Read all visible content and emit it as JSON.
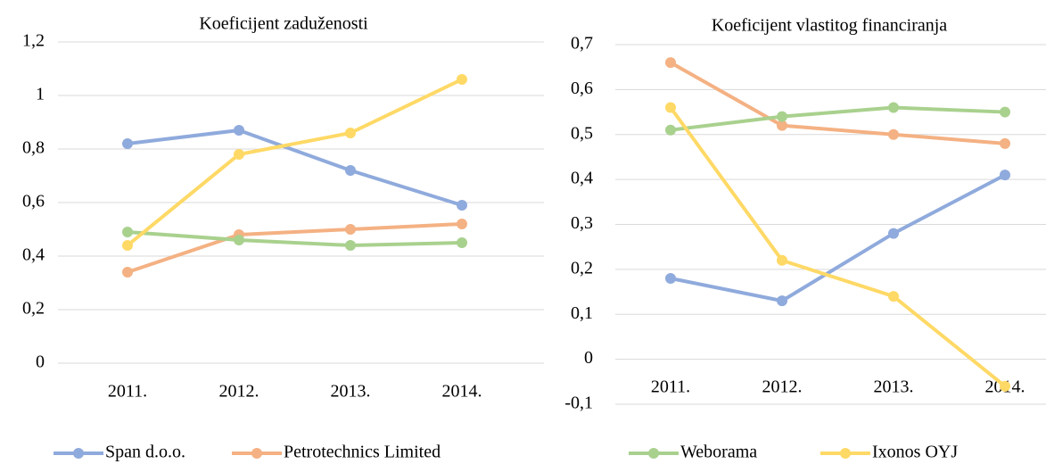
{
  "chart_data": [
    {
      "type": "line",
      "title": "Koeficijent zaduženosti",
      "categories": [
        "2011.",
        "2012.",
        "2013.",
        "2014."
      ],
      "ylim": [
        0,
        1.2
      ],
      "yticks": [
        0,
        {
          "value": 0.2,
          "label": "0,2"
        },
        {
          "value": 0.4,
          "label": "0,4"
        },
        {
          "value": 0.6,
          "label": "0,6"
        },
        {
          "value": 0.8,
          "label": "0,8"
        },
        1,
        {
          "value": 1.2,
          "label": "1,2"
        }
      ],
      "grid": true,
      "legend": "bottom",
      "series": [
        {
          "name": "Span d.o.o.",
          "color": "#8faadc",
          "values": [
            0.82,
            0.87,
            0.72,
            0.59
          ]
        },
        {
          "name": "Petrotechnics Limited",
          "color": "#f4b183",
          "values": [
            0.34,
            0.48,
            0.5,
            0.52
          ]
        },
        {
          "name": "Weborama",
          "color": "#a9d18e",
          "values": [
            0.49,
            0.46,
            0.44,
            0.45
          ]
        },
        {
          "name": "Ixonos OYJ",
          "color": "#ffd966",
          "values": [
            0.44,
            0.78,
            0.86,
            1.06
          ]
        }
      ]
    },
    {
      "type": "line",
      "title": "Koeficijent vlastitog financiranja",
      "categories": [
        "2011.",
        "2012.",
        "2013.",
        "2014."
      ],
      "ylim": [
        -0.1,
        0.7
      ],
      "yticks": [
        {
          "value": -0.1,
          "label": "-0,1"
        },
        0,
        {
          "value": 0.1,
          "label": "0,1"
        },
        {
          "value": 0.2,
          "label": "0,2"
        },
        {
          "value": 0.3,
          "label": "0,3"
        },
        {
          "value": 0.4,
          "label": "0,4"
        },
        {
          "value": 0.5,
          "label": "0,5"
        },
        {
          "value": 0.6,
          "label": "0,6"
        },
        {
          "value": 0.7,
          "label": "0,7"
        }
      ],
      "grid": true,
      "series": [
        {
          "name": "Span d.o.o.",
          "color": "#8faadc",
          "values": [
            0.18,
            0.13,
            0.28,
            0.41
          ]
        },
        {
          "name": "Petrotechnics Limited",
          "color": "#f4b183",
          "values": [
            0.66,
            0.52,
            0.5,
            0.48
          ]
        },
        {
          "name": "Weborama",
          "color": "#a9d18e",
          "values": [
            0.51,
            0.54,
            0.56,
            0.55
          ]
        },
        {
          "name": "Ixonos OYJ",
          "color": "#ffd966",
          "values": [
            0.56,
            0.22,
            0.14,
            -0.06
          ]
        }
      ]
    }
  ]
}
